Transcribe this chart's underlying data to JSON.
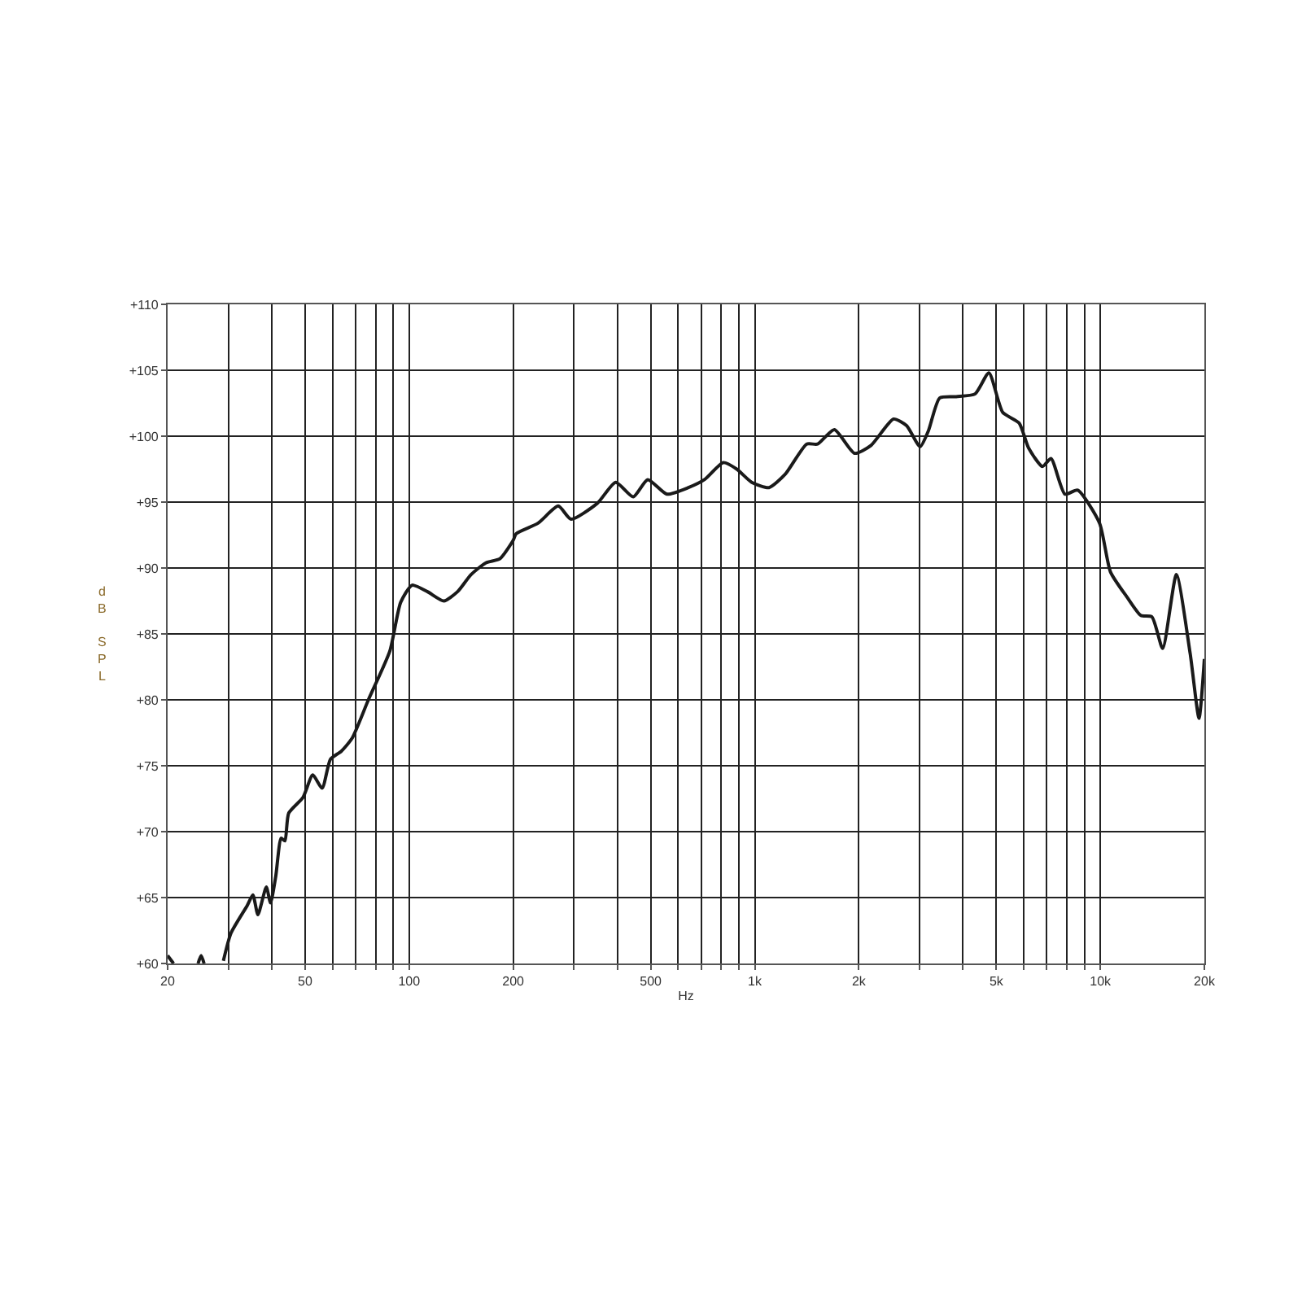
{
  "chart_data": {
    "type": "line",
    "xlabel": "Hz",
    "ylabel": "dB SPL",
    "log": "x",
    "grid": true,
    "marker": "none",
    "line_style": "solid",
    "xlim": [
      20,
      20000
    ],
    "xticks": [
      20,
      {
        "value": 30,
        "label": null
      },
      {
        "value": 40,
        "label": null
      },
      50,
      {
        "value": 60,
        "label": null
      },
      {
        "value": 70,
        "label": null
      },
      {
        "value": 80,
        "label": null
      },
      {
        "value": 90,
        "label": null
      },
      100,
      200,
      {
        "value": 300,
        "label": null
      },
      {
        "value": 400,
        "label": null
      },
      500,
      {
        "value": 600,
        "label": null
      },
      {
        "value": 700,
        "label": null
      },
      {
        "value": 800,
        "label": null
      },
      {
        "value": 900,
        "label": null
      },
      {
        "value": 1000,
        "label": "1k"
      },
      {
        "value": 2000,
        "label": "2k"
      },
      {
        "value": 3000,
        "label": null
      },
      {
        "value": 4000,
        "label": null
      },
      {
        "value": 5000,
        "label": "5k"
      },
      {
        "value": 6000,
        "label": null
      },
      {
        "value": 7000,
        "label": null
      },
      {
        "value": 8000,
        "label": null
      },
      {
        "value": 9000,
        "label": null
      },
      {
        "value": 10000,
        "label": "10k"
      },
      {
        "value": 20000,
        "label": "20k"
      }
    ],
    "ylim": [
      60,
      110
    ],
    "yticks": [
      {
        "value": 60,
        "label": "+60"
      },
      {
        "value": 65,
        "label": "+65"
      },
      {
        "value": 70,
        "label": "+70"
      },
      {
        "value": 75,
        "label": "+75"
      },
      {
        "value": 80,
        "label": "+80"
      },
      {
        "value": 85,
        "label": "+85"
      },
      {
        "value": 90,
        "label": "+90"
      },
      {
        "value": 95,
        "label": "+95"
      },
      {
        "value": 100,
        "label": "+100"
      },
      {
        "value": 105,
        "label": "+105"
      },
      {
        "value": 110,
        "label": "+110"
      }
    ],
    "series": [
      {
        "color": "#1a1a1a",
        "x": [
          20,
          20.8,
          22,
          24.5,
          25,
          25.5,
          27,
          29,
          30.5,
          34,
          35.3,
          36.5,
          38.6,
          39.7,
          41.1,
          42.6,
          43.7,
          44.8,
          49.3,
          52.6,
          56,
          59.2,
          63.6,
          68.4,
          76.2,
          87.9,
          94.5,
          102,
          113,
          126,
          138,
          151,
          167,
          183,
          200,
          204,
          236,
          270,
          294,
          350,
          396,
          445,
          490,
          557,
          643,
          715,
          811,
          887,
          980,
          1100,
          1224,
          1414,
          1520,
          1700,
          1945,
          2170,
          2520,
          2750,
          3010,
          3180,
          3430,
          3830,
          4340,
          4760,
          5220,
          5820,
          6200,
          6800,
          7200,
          7900,
          8600,
          9950,
          10700,
          11940,
          13100,
          14100,
          15150,
          16600,
          18200,
          19300,
          20000
        ],
        "values": [
          60.6,
          60.0,
          null,
          60.0,
          60.6,
          60.0,
          null,
          60.2,
          62.3,
          64.4,
          65.2,
          63.7,
          65.8,
          64.6,
          66.6,
          69.5,
          69.3,
          71.4,
          72.6,
          74.3,
          73.3,
          75.5,
          76.1,
          77.1,
          80.0,
          83.7,
          87.4,
          88.7,
          88.2,
          87.5,
          88.2,
          89.5,
          90.4,
          90.7,
          92.1,
          92.6,
          93.4,
          94.7,
          93.7,
          94.9,
          96.5,
          95.4,
          96.7,
          95.6,
          96.1,
          96.7,
          98.0,
          97.5,
          96.5,
          96.1,
          97.1,
          99.4,
          99.4,
          100.5,
          98.7,
          99.3,
          101.3,
          100.8,
          99.2,
          100.4,
          102.9,
          103.0,
          103.2,
          104.8,
          101.8,
          101.0,
          99.1,
          97.7,
          98.3,
          95.6,
          95.9,
          93.4,
          89.7,
          87.8,
          86.4,
          86.3,
          83.9,
          89.5,
          83.5,
          78.6,
          83.1
        ]
      }
    ]
  }
}
